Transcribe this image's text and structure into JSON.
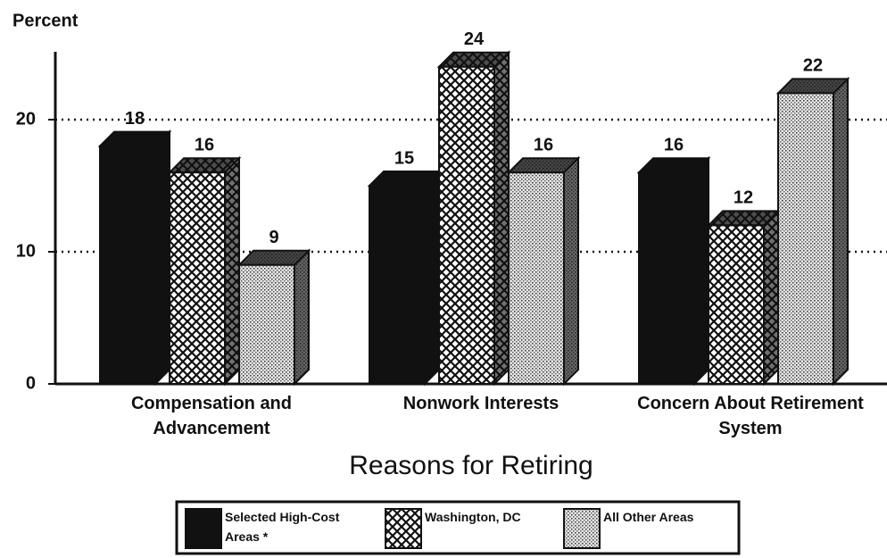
{
  "chart_data": {
    "type": "bar",
    "y_label": "Percent",
    "x_label": "Reasons for Retiring",
    "categories": [
      "Compensation and Advancement",
      "Nonwork Interests",
      "Concern About Retirement System"
    ],
    "series": [
      {
        "name": "Selected High-Cost Areas *",
        "color": "#111111",
        "pattern": "solid",
        "values": [
          18,
          15,
          16
        ]
      },
      {
        "name": "Washington, DC",
        "color": "#111111",
        "pattern": "crosshatch",
        "values": [
          16,
          24,
          12
        ]
      },
      {
        "name": "All Other Areas",
        "color": "#111111",
        "pattern": "dots",
        "values": [
          9,
          16,
          22
        ]
      }
    ],
    "ylim": [
      0,
      25
    ],
    "yticks": [
      0,
      10,
      20
    ],
    "grid": true,
    "grid_style": "dotted",
    "legend": "bottom"
  }
}
